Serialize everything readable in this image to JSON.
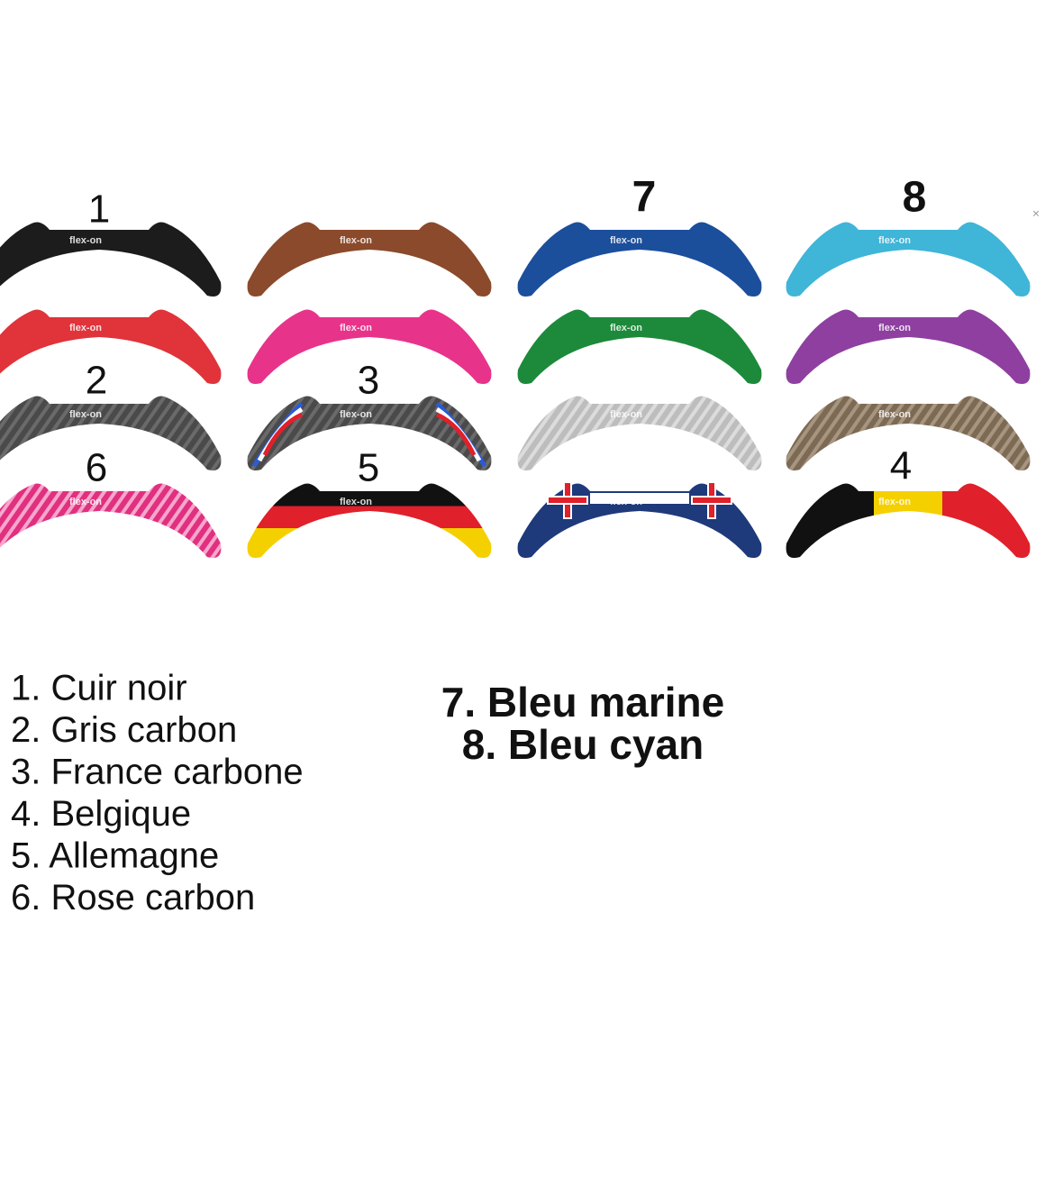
{
  "numbers": [
    {
      "text": "1"
    },
    {
      "text": "7"
    },
    {
      "text": "8"
    },
    {
      "text": "2"
    },
    {
      "text": "3"
    },
    {
      "text": "6"
    },
    {
      "text": "5"
    },
    {
      "text": "4"
    }
  ],
  "logo": "flex-on",
  "close": "×",
  "list_left": [
    "1. Cuir noir",
    "2. Gris carbon",
    "3. France carbone",
    "4. Belgique",
    "5. Allemagne",
    "6. Rose carbon"
  ],
  "list_right": [
    "7. Bleu marine",
    "8. Bleu cyan"
  ]
}
